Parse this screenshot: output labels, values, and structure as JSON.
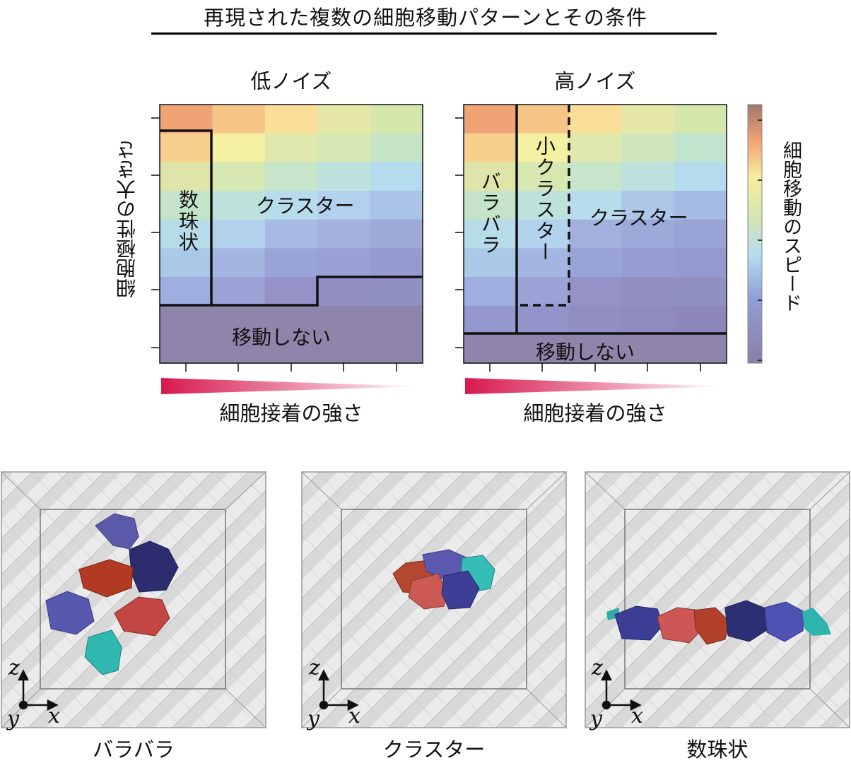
{
  "figure": {
    "title": "再現された複数の細胞移動パターンとその条件"
  },
  "chart_data": [
    {
      "type": "heatmap",
      "title": "低ノイズ",
      "xlabel": "細胞接着の強さ",
      "ylabel": "細胞極性の大きさ",
      "colorbar_label": "細胞移動のスピード",
      "grid": false,
      "regions": [
        "数珠状",
        "クラスター",
        "移動しない"
      ]
    },
    {
      "type": "heatmap",
      "title": "高ノイズ",
      "xlabel": "細胞接着の強さ",
      "ylabel": "",
      "colorbar_label": "細胞移動のスピード",
      "grid": false,
      "regions": [
        "バラバラ",
        "小クラスター",
        "クラスター",
        "移動しない"
      ]
    }
  ],
  "simulations": [
    {
      "caption": "バラバラ",
      "axes": [
        "z",
        "y",
        "x"
      ]
    },
    {
      "caption": "クラスター",
      "axes": [
        "z",
        "y",
        "x"
      ]
    },
    {
      "caption": "数珠状",
      "axes": [
        "z",
        "y",
        "x"
      ]
    }
  ],
  "colors": {
    "gradient_start": "#d8194f",
    "boundary": "#111111"
  }
}
